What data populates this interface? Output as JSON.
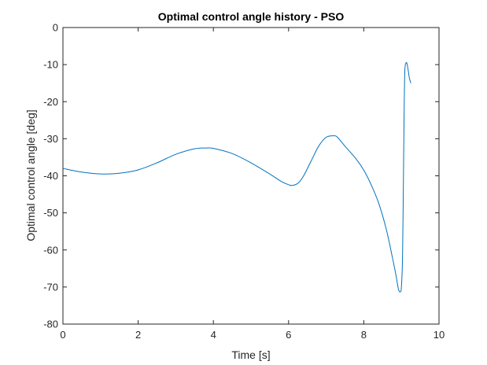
{
  "chart_data": {
    "type": "line",
    "title": "Optimal control angle history - PSO",
    "xlabel": "Time [s]",
    "ylabel": "Optimal control angle [deg]",
    "xlim": [
      0,
      10
    ],
    "ylim": [
      -80,
      0
    ],
    "xticks": [
      0,
      2,
      4,
      6,
      8,
      10
    ],
    "yticks": [
      0,
      -10,
      -20,
      -30,
      -40,
      -50,
      -60,
      -70,
      -80
    ],
    "grid": false,
    "legend": "none",
    "colors": {
      "line": "#0072BD",
      "axes": "#262626",
      "background": "#ffffff"
    },
    "series": [
      {
        "x": [
          0,
          0.5,
          1.0,
          1.5,
          2.0,
          2.5,
          3.0,
          3.5,
          3.8,
          4.0,
          4.5,
          5.0,
          5.5,
          5.8,
          6.0,
          6.1,
          6.25,
          6.4,
          6.6,
          6.8,
          7.0,
          7.2,
          7.3,
          7.5,
          7.8,
          8.0,
          8.2,
          8.4,
          8.6,
          8.75,
          8.85,
          8.92,
          8.97,
          9.0,
          9.03,
          9.05,
          9.07,
          9.09,
          9.12,
          9.15,
          9.18,
          9.21,
          9.25
        ],
        "y": [
          -38.0,
          -39.0,
          -39.5,
          -39.3,
          -38.4,
          -36.5,
          -34.2,
          -32.7,
          -32.5,
          -32.6,
          -34.0,
          -36.5,
          -39.5,
          -41.5,
          -42.4,
          -42.6,
          -42.0,
          -40.0,
          -36.0,
          -32.0,
          -29.6,
          -29.2,
          -29.6,
          -32.0,
          -35.5,
          -38.5,
          -42.5,
          -47.5,
          -54.5,
          -61.5,
          -66.5,
          -70.5,
          -71.3,
          -70.0,
          -62.0,
          -45.0,
          -25.0,
          -12.0,
          -9.6,
          -9.8,
          -11.5,
          -13.5,
          -15.0
        ]
      }
    ]
  }
}
